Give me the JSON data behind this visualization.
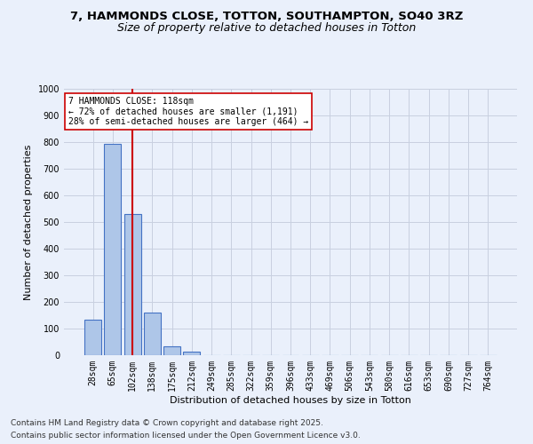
{
  "title_line1": "7, HAMMONDS CLOSE, TOTTON, SOUTHAMPTON, SO40 3RZ",
  "title_line2": "Size of property relative to detached houses in Totton",
  "xlabel": "Distribution of detached houses by size in Totton",
  "ylabel": "Number of detached properties",
  "categories": [
    "28sqm",
    "65sqm",
    "102sqm",
    "138sqm",
    "175sqm",
    "212sqm",
    "249sqm",
    "285sqm",
    "322sqm",
    "359sqm",
    "396sqm",
    "433sqm",
    "469sqm",
    "506sqm",
    "543sqm",
    "580sqm",
    "616sqm",
    "653sqm",
    "690sqm",
    "727sqm",
    "764sqm"
  ],
  "values": [
    135,
    795,
    530,
    160,
    35,
    12,
    0,
    0,
    0,
    0,
    0,
    0,
    0,
    0,
    0,
    0,
    0,
    0,
    0,
    0,
    0
  ],
  "bar_color": "#aec6e8",
  "bar_edge_color": "#4472c4",
  "vline_x": 2,
  "vline_color": "#cc0000",
  "annotation_text": "7 HAMMONDS CLOSE: 118sqm\n← 72% of detached houses are smaller (1,191)\n28% of semi-detached houses are larger (464) →",
  "annotation_box_color": "#ffffff",
  "annotation_box_edge_color": "#cc0000",
  "ylim": [
    0,
    1000
  ],
  "yticks": [
    0,
    100,
    200,
    300,
    400,
    500,
    600,
    700,
    800,
    900,
    1000
  ],
  "footer_line1": "Contains HM Land Registry data © Crown copyright and database right 2025.",
  "footer_line2": "Contains public sector information licensed under the Open Government Licence v3.0.",
  "bg_color": "#eaf0fb",
  "plot_bg_color": "#eaf0fb",
  "grid_color": "#c8d0e0",
  "title_fontsize": 9.5,
  "subtitle_fontsize": 9,
  "axis_label_fontsize": 8,
  "tick_fontsize": 7,
  "footer_fontsize": 6.5
}
